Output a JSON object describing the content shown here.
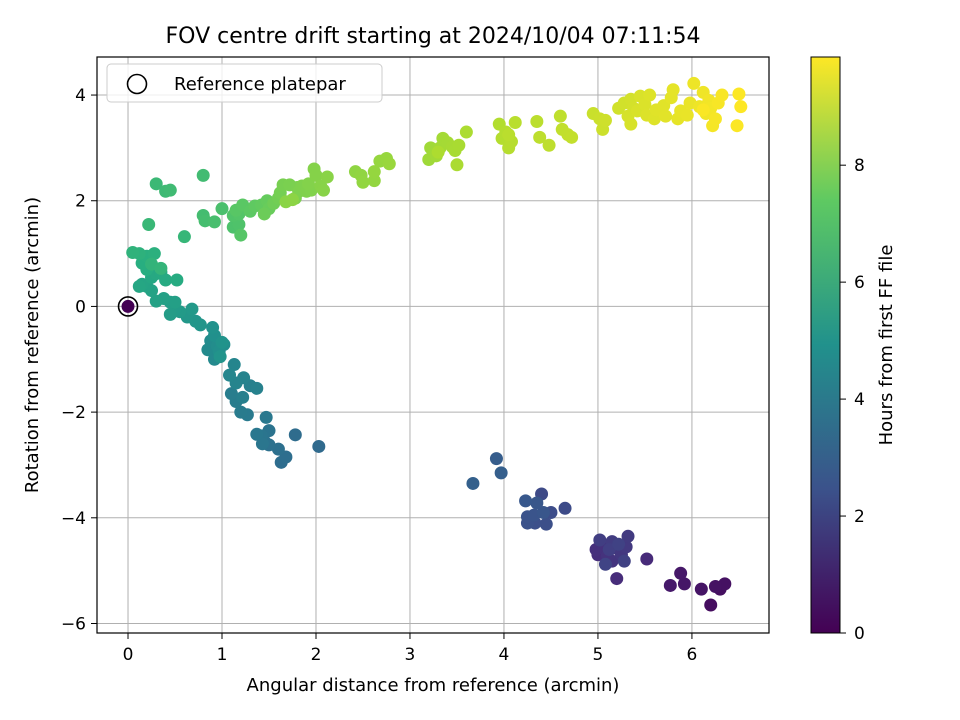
{
  "chart_data": {
    "type": "scatter",
    "title": "FOV centre drift starting at 2024/10/04 07:11:54",
    "xlabel": "Angular distance from reference (arcmin)",
    "ylabel": "Rotation from reference (arcmin)",
    "xlim": [
      -0.33,
      6.82
    ],
    "ylim": [
      -6.18,
      4.72
    ],
    "xticks": [
      0,
      1,
      2,
      3,
      4,
      5,
      6
    ],
    "yticks": [
      -6,
      -4,
      -2,
      0,
      2,
      4
    ],
    "xtick_labels": [
      "0",
      "1",
      "2",
      "3",
      "4",
      "5",
      "6"
    ],
    "ytick_labels": [
      "−6",
      "−4",
      "−2",
      "0",
      "2",
      "4"
    ],
    "grid": true,
    "legend": {
      "position": "top-left",
      "entries": [
        "Reference platepar"
      ]
    },
    "reference_point": {
      "label": "Reference platepar",
      "x": 0,
      "y": 0,
      "hours": 0
    },
    "colorbar": {
      "label": "Hours from first FF file",
      "colormap": "viridis",
      "range": [
        0,
        9.85
      ],
      "ticks": [
        0,
        2,
        4,
        6,
        8
      ],
      "tick_labels": [
        "0",
        "2",
        "4",
        "6",
        "8"
      ]
    },
    "points": [
      {
        "x": 6.2,
        "y": -5.65,
        "h": 0.35
      },
      {
        "x": 6.3,
        "y": -5.35,
        "h": 0.4
      },
      {
        "x": 6.35,
        "y": -5.25,
        "h": 0.45
      },
      {
        "x": 6.25,
        "y": -5.3,
        "h": 0.5
      },
      {
        "x": 6.1,
        "y": -5.35,
        "h": 0.55
      },
      {
        "x": 5.92,
        "y": -5.25,
        "h": 0.6
      },
      {
        "x": 5.88,
        "y": -5.05,
        "h": 0.65
      },
      {
        "x": 5.77,
        "y": -5.28,
        "h": 0.7
      },
      {
        "x": 5.52,
        "y": -4.78,
        "h": 1.2
      },
      {
        "x": 5.2,
        "y": -5.15,
        "h": 1.25
      },
      {
        "x": 5.0,
        "y": -4.7,
        "h": 1.3
      },
      {
        "x": 4.98,
        "y": -4.6,
        "h": 1.35
      },
      {
        "x": 5.05,
        "y": -4.55,
        "h": 1.4
      },
      {
        "x": 5.1,
        "y": -4.72,
        "h": 1.45
      },
      {
        "x": 5.15,
        "y": -4.82,
        "h": 1.5
      },
      {
        "x": 5.2,
        "y": -4.58,
        "h": 1.55
      },
      {
        "x": 5.25,
        "y": -4.7,
        "h": 1.6
      },
      {
        "x": 5.3,
        "y": -4.55,
        "h": 1.65
      },
      {
        "x": 5.32,
        "y": -4.35,
        "h": 1.7
      },
      {
        "x": 5.15,
        "y": -4.45,
        "h": 1.75
      },
      {
        "x": 5.02,
        "y": -4.42,
        "h": 1.8
      },
      {
        "x": 5.12,
        "y": -4.6,
        "h": 1.85
      },
      {
        "x": 5.28,
        "y": -4.82,
        "h": 1.9
      },
      {
        "x": 5.22,
        "y": -4.5,
        "h": 1.95
      },
      {
        "x": 5.08,
        "y": -4.88,
        "h": 2.0
      },
      {
        "x": 4.4,
        "y": -3.55,
        "h": 2.2
      },
      {
        "x": 4.65,
        "y": -3.82,
        "h": 2.25
      },
      {
        "x": 4.5,
        "y": -3.9,
        "h": 2.3
      },
      {
        "x": 4.45,
        "y": -4.12,
        "h": 2.35
      },
      {
        "x": 4.33,
        "y": -4.1,
        "h": 2.4
      },
      {
        "x": 4.25,
        "y": -4.1,
        "h": 2.45
      },
      {
        "x": 4.25,
        "y": -3.98,
        "h": 2.5
      },
      {
        "x": 4.32,
        "y": -3.95,
        "h": 2.55
      },
      {
        "x": 4.42,
        "y": -3.9,
        "h": 2.6
      },
      {
        "x": 4.35,
        "y": -3.72,
        "h": 2.65
      },
      {
        "x": 4.23,
        "y": -3.68,
        "h": 2.7
      },
      {
        "x": 3.92,
        "y": -2.88,
        "h": 2.9
      },
      {
        "x": 3.97,
        "y": -3.15,
        "h": 2.95
      },
      {
        "x": 3.67,
        "y": -3.35,
        "h": 3.0
      },
      {
        "x": 2.03,
        "y": -2.65,
        "h": 3.4
      },
      {
        "x": 1.78,
        "y": -2.43,
        "h": 3.45
      },
      {
        "x": 1.63,
        "y": -2.95,
        "h": 3.5
      },
      {
        "x": 1.68,
        "y": -2.85,
        "h": 3.55
      },
      {
        "x": 1.6,
        "y": -2.7,
        "h": 3.6
      },
      {
        "x": 1.5,
        "y": -2.62,
        "h": 3.65
      },
      {
        "x": 1.45,
        "y": -2.55,
        "h": 3.7
      },
      {
        "x": 1.5,
        "y": -2.35,
        "h": 3.75
      },
      {
        "x": 1.42,
        "y": -2.45,
        "h": 3.8
      },
      {
        "x": 1.43,
        "y": -2.6,
        "h": 3.85
      },
      {
        "x": 1.37,
        "y": -2.42,
        "h": 3.9
      },
      {
        "x": 1.47,
        "y": -2.1,
        "h": 3.95
      },
      {
        "x": 1.27,
        "y": -2.05,
        "h": 4.0
      },
      {
        "x": 1.2,
        "y": -2.0,
        "h": 4.05
      },
      {
        "x": 1.15,
        "y": -1.8,
        "h": 4.1
      },
      {
        "x": 1.1,
        "y": -1.65,
        "h": 4.15
      },
      {
        "x": 1.22,
        "y": -1.72,
        "h": 4.2
      },
      {
        "x": 1.3,
        "y": -1.5,
        "h": 4.25
      },
      {
        "x": 1.37,
        "y": -1.55,
        "h": 4.3
      },
      {
        "x": 1.23,
        "y": -1.35,
        "h": 4.35
      },
      {
        "x": 1.15,
        "y": -1.45,
        "h": 4.4
      },
      {
        "x": 1.13,
        "y": -1.1,
        "h": 4.45
      },
      {
        "x": 1.08,
        "y": -1.3,
        "h": 4.5
      },
      {
        "x": 0.92,
        "y": -1.0,
        "h": 4.6
      },
      {
        "x": 0.85,
        "y": -0.82,
        "h": 4.65
      },
      {
        "x": 0.88,
        "y": -0.65,
        "h": 4.7
      },
      {
        "x": 0.95,
        "y": -0.75,
        "h": 4.75
      },
      {
        "x": 1.02,
        "y": -0.72,
        "h": 4.8
      },
      {
        "x": 0.97,
        "y": -0.85,
        "h": 4.85
      },
      {
        "x": 0.92,
        "y": -0.55,
        "h": 4.9
      },
      {
        "x": 0.9,
        "y": -0.4,
        "h": 4.95
      },
      {
        "x": 1.0,
        "y": -0.68,
        "h": 5.0
      },
      {
        "x": 0.98,
        "y": -0.95,
        "h": 5.05
      },
      {
        "x": 0.77,
        "y": -0.35,
        "h": 5.1
      },
      {
        "x": 0.72,
        "y": -0.28,
        "h": 5.15
      },
      {
        "x": 0.63,
        "y": -0.2,
        "h": 5.2
      },
      {
        "x": 0.68,
        "y": -0.05,
        "h": 5.25
      },
      {
        "x": 0.55,
        "y": -0.1,
        "h": 5.3
      },
      {
        "x": 0.5,
        "y": -0.05,
        "h": 5.35
      },
      {
        "x": 0.45,
        "y": -0.15,
        "h": 5.4
      },
      {
        "x": 0.45,
        "y": 0.08,
        "h": 5.45
      },
      {
        "x": 0.5,
        "y": 0.08,
        "h": 5.5
      },
      {
        "x": 0.38,
        "y": 0.15,
        "h": 5.55
      },
      {
        "x": 0.3,
        "y": 0.1,
        "h": 5.6
      },
      {
        "x": 0.25,
        "y": 0.3,
        "h": 5.65
      },
      {
        "x": 0.2,
        "y": 0.38,
        "h": 5.7
      },
      {
        "x": 0.15,
        "y": 0.42,
        "h": 5.75
      },
      {
        "x": 0.12,
        "y": 0.38,
        "h": 5.8
      },
      {
        "x": 0.25,
        "y": 0.55,
        "h": 5.85
      },
      {
        "x": 0.3,
        "y": 0.62,
        "h": 5.9
      },
      {
        "x": 0.35,
        "y": 0.65,
        "h": 5.95
      },
      {
        "x": 0.4,
        "y": 0.5,
        "h": 6.0
      },
      {
        "x": 0.52,
        "y": 0.5,
        "h": 6.05
      },
      {
        "x": 0.2,
        "y": 0.7,
        "h": 6.1
      },
      {
        "x": 0.15,
        "y": 0.82,
        "h": 6.15
      },
      {
        "x": 0.2,
        "y": 0.95,
        "h": 6.2
      },
      {
        "x": 0.28,
        "y": 1.0,
        "h": 6.25
      },
      {
        "x": 0.12,
        "y": 1.0,
        "h": 6.3
      },
      {
        "x": 0.05,
        "y": 1.02,
        "h": 6.35
      },
      {
        "x": 0.25,
        "y": 0.8,
        "h": 6.4
      },
      {
        "x": 0.35,
        "y": 0.72,
        "h": 6.45
      },
      {
        "x": 0.6,
        "y": 1.32,
        "h": 6.5
      },
      {
        "x": 0.22,
        "y": 1.55,
        "h": 6.55
      },
      {
        "x": 0.3,
        "y": 2.32,
        "h": 6.6
      },
      {
        "x": 0.4,
        "y": 2.18,
        "h": 6.65
      },
      {
        "x": 0.45,
        "y": 2.2,
        "h": 6.7
      },
      {
        "x": 0.8,
        "y": 2.48,
        "h": 6.75
      },
      {
        "x": 0.8,
        "y": 1.72,
        "h": 6.8
      },
      {
        "x": 0.82,
        "y": 1.62,
        "h": 6.85
      },
      {
        "x": 0.92,
        "y": 1.6,
        "h": 6.9
      },
      {
        "x": 1.0,
        "y": 1.85,
        "h": 6.95
      },
      {
        "x": 1.12,
        "y": 1.5,
        "h": 7.0
      },
      {
        "x": 1.18,
        "y": 1.55,
        "h": 7.05
      },
      {
        "x": 1.12,
        "y": 1.72,
        "h": 7.1
      },
      {
        "x": 1.18,
        "y": 1.75,
        "h": 7.15
      },
      {
        "x": 1.2,
        "y": 1.35,
        "h": 7.2
      },
      {
        "x": 1.15,
        "y": 1.82,
        "h": 7.25
      },
      {
        "x": 1.22,
        "y": 1.92,
        "h": 7.3
      },
      {
        "x": 1.3,
        "y": 1.8,
        "h": 7.35
      },
      {
        "x": 1.35,
        "y": 1.9,
        "h": 7.4
      },
      {
        "x": 1.42,
        "y": 1.92,
        "h": 7.45
      },
      {
        "x": 1.48,
        "y": 2.0,
        "h": 7.5
      },
      {
        "x": 1.5,
        "y": 1.85,
        "h": 7.55
      },
      {
        "x": 1.45,
        "y": 1.75,
        "h": 7.6
      },
      {
        "x": 1.55,
        "y": 1.95,
        "h": 7.65
      },
      {
        "x": 1.6,
        "y": 2.05,
        "h": 7.7
      },
      {
        "x": 1.62,
        "y": 2.15,
        "h": 7.75
      },
      {
        "x": 1.65,
        "y": 2.3,
        "h": 7.8
      },
      {
        "x": 1.72,
        "y": 2.3,
        "h": 7.82
      },
      {
        "x": 1.8,
        "y": 2.25,
        "h": 7.84
      },
      {
        "x": 1.78,
        "y": 2.05,
        "h": 7.86
      },
      {
        "x": 1.82,
        "y": 2.18,
        "h": 7.88
      },
      {
        "x": 1.85,
        "y": 2.28,
        "h": 7.9
      },
      {
        "x": 1.9,
        "y": 2.18,
        "h": 7.92
      },
      {
        "x": 1.95,
        "y": 2.2,
        "h": 7.94
      },
      {
        "x": 1.92,
        "y": 2.32,
        "h": 7.96
      },
      {
        "x": 1.98,
        "y": 2.6,
        "h": 7.98
      },
      {
        "x": 2.0,
        "y": 2.48,
        "h": 8.0
      },
      {
        "x": 2.05,
        "y": 2.28,
        "h": 8.02
      },
      {
        "x": 2.08,
        "y": 2.2,
        "h": 8.04
      },
      {
        "x": 2.12,
        "y": 2.45,
        "h": 8.06
      },
      {
        "x": 1.68,
        "y": 1.98,
        "h": 8.08
      },
      {
        "x": 1.75,
        "y": 2.02,
        "h": 8.1
      },
      {
        "x": 2.42,
        "y": 2.55,
        "h": 8.15
      },
      {
        "x": 2.48,
        "y": 2.48,
        "h": 8.18
      },
      {
        "x": 2.5,
        "y": 2.35,
        "h": 8.2
      },
      {
        "x": 2.62,
        "y": 2.38,
        "h": 8.22
      },
      {
        "x": 2.62,
        "y": 2.55,
        "h": 8.24
      },
      {
        "x": 2.68,
        "y": 2.75,
        "h": 8.26
      },
      {
        "x": 2.75,
        "y": 2.8,
        "h": 8.28
      },
      {
        "x": 2.78,
        "y": 2.7,
        "h": 8.3
      },
      {
        "x": 3.2,
        "y": 2.78,
        "h": 8.4
      },
      {
        "x": 3.22,
        "y": 3.0,
        "h": 8.42
      },
      {
        "x": 3.28,
        "y": 2.85,
        "h": 8.44
      },
      {
        "x": 3.32,
        "y": 3.0,
        "h": 8.46
      },
      {
        "x": 3.35,
        "y": 3.18,
        "h": 8.48
      },
      {
        "x": 3.4,
        "y": 3.1,
        "h": 8.5
      },
      {
        "x": 3.45,
        "y": 3.02,
        "h": 8.52
      },
      {
        "x": 3.48,
        "y": 2.95,
        "h": 8.54
      },
      {
        "x": 3.52,
        "y": 3.05,
        "h": 8.56
      },
      {
        "x": 3.5,
        "y": 2.68,
        "h": 8.58
      },
      {
        "x": 3.6,
        "y": 3.3,
        "h": 8.6
      },
      {
        "x": 3.3,
        "y": 2.92,
        "h": 8.62
      },
      {
        "x": 3.95,
        "y": 3.45,
        "h": 8.7
      },
      {
        "x": 3.98,
        "y": 3.18,
        "h": 8.72
      },
      {
        "x": 4.02,
        "y": 3.3,
        "h": 8.74
      },
      {
        "x": 4.05,
        "y": 3.0,
        "h": 8.76
      },
      {
        "x": 4.08,
        "y": 3.12,
        "h": 8.78
      },
      {
        "x": 4.12,
        "y": 3.48,
        "h": 8.8
      },
      {
        "x": 4.05,
        "y": 3.25,
        "h": 8.82
      },
      {
        "x": 4.35,
        "y": 3.5,
        "h": 8.84
      },
      {
        "x": 4.38,
        "y": 3.2,
        "h": 8.86
      },
      {
        "x": 4.48,
        "y": 3.05,
        "h": 8.88
      },
      {
        "x": 4.6,
        "y": 3.6,
        "h": 8.9
      },
      {
        "x": 4.62,
        "y": 3.35,
        "h": 8.92
      },
      {
        "x": 4.68,
        "y": 3.25,
        "h": 8.94
      },
      {
        "x": 4.72,
        "y": 3.2,
        "h": 8.96
      },
      {
        "x": 4.95,
        "y": 3.65,
        "h": 9.05
      },
      {
        "x": 5.02,
        "y": 3.55,
        "h": 9.08
      },
      {
        "x": 5.05,
        "y": 3.35,
        "h": 9.1
      },
      {
        "x": 5.08,
        "y": 3.52,
        "h": 9.12
      },
      {
        "x": 5.22,
        "y": 3.75,
        "h": 9.15
      },
      {
        "x": 5.28,
        "y": 3.85,
        "h": 9.18
      },
      {
        "x": 5.35,
        "y": 3.92,
        "h": 9.2
      },
      {
        "x": 5.38,
        "y": 3.75,
        "h": 9.22
      },
      {
        "x": 5.32,
        "y": 3.6,
        "h": 9.24
      },
      {
        "x": 5.35,
        "y": 3.45,
        "h": 9.26
      },
      {
        "x": 5.42,
        "y": 3.7,
        "h": 9.28
      },
      {
        "x": 5.45,
        "y": 3.98,
        "h": 9.3
      },
      {
        "x": 5.5,
        "y": 3.82,
        "h": 9.32
      },
      {
        "x": 5.52,
        "y": 3.62,
        "h": 9.34
      },
      {
        "x": 5.55,
        "y": 4.0,
        "h": 9.36
      },
      {
        "x": 5.6,
        "y": 3.55,
        "h": 9.38
      },
      {
        "x": 5.62,
        "y": 3.72,
        "h": 9.4
      },
      {
        "x": 5.7,
        "y": 3.8,
        "h": 9.42
      },
      {
        "x": 5.72,
        "y": 3.6,
        "h": 9.44
      },
      {
        "x": 5.78,
        "y": 3.95,
        "h": 9.46
      },
      {
        "x": 5.8,
        "y": 4.1,
        "h": 9.48
      },
      {
        "x": 5.85,
        "y": 3.55,
        "h": 9.5
      },
      {
        "x": 5.88,
        "y": 3.7,
        "h": 9.52
      },
      {
        "x": 5.95,
        "y": 3.62,
        "h": 9.54
      },
      {
        "x": 5.98,
        "y": 3.85,
        "h": 9.56
      },
      {
        "x": 6.02,
        "y": 4.22,
        "h": 9.6
      },
      {
        "x": 6.08,
        "y": 3.78,
        "h": 9.62
      },
      {
        "x": 6.12,
        "y": 4.05,
        "h": 9.64
      },
      {
        "x": 6.15,
        "y": 3.65,
        "h": 9.66
      },
      {
        "x": 6.18,
        "y": 3.9,
        "h": 9.68
      },
      {
        "x": 6.2,
        "y": 3.75,
        "h": 9.7
      },
      {
        "x": 6.22,
        "y": 3.42,
        "h": 9.72
      },
      {
        "x": 6.25,
        "y": 3.55,
        "h": 9.74
      },
      {
        "x": 6.28,
        "y": 3.85,
        "h": 9.76
      },
      {
        "x": 6.32,
        "y": 4.0,
        "h": 9.78
      },
      {
        "x": 6.12,
        "y": 3.72,
        "h": 9.8
      },
      {
        "x": 6.48,
        "y": 3.42,
        "h": 9.82
      },
      {
        "x": 6.5,
        "y": 4.02,
        "h": 9.84
      },
      {
        "x": 6.52,
        "y": 3.78,
        "h": 9.85
      }
    ]
  }
}
